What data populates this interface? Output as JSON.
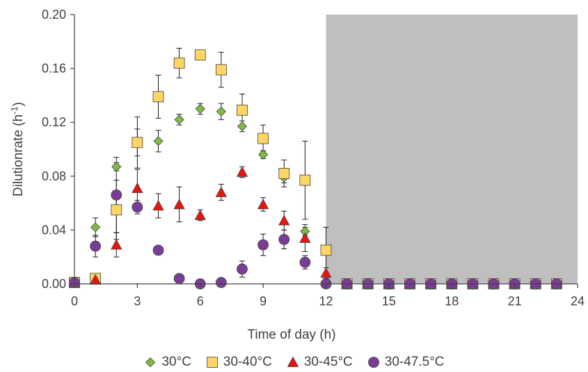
{
  "chart_data": {
    "type": "scatter",
    "xlabel": "Time of day (h)",
    "ylabel_main": "Dilutionrate (h",
    "ylabel_sup": "-1",
    "ylabel_end": ")",
    "xlim": [
      0,
      24
    ],
    "ylim": [
      0,
      0.2
    ],
    "xticks": [
      "0",
      "3",
      "6",
      "9",
      "12",
      "15",
      "18",
      "21",
      "24"
    ],
    "yticks": [
      "0.00",
      "0.04",
      "0.08",
      "0.12",
      "0.16",
      "0.20"
    ],
    "dark_period": [
      12,
      24
    ],
    "grid": false,
    "legend_position": "bottom",
    "series": [
      {
        "name": "30°C",
        "marker": "diamond",
        "color": "#7dbb42",
        "x": [
          0,
          1,
          2,
          3,
          4,
          5,
          6,
          7,
          8,
          9,
          10,
          11,
          12,
          13,
          14,
          15,
          16,
          17,
          18,
          19,
          20,
          21,
          22,
          23
        ],
        "y": [
          0.001,
          0.042,
          0.087,
          0.105,
          0.106,
          0.122,
          0.13,
          0.128,
          0.117,
          0.096,
          0.079,
          0.039,
          0,
          0,
          0,
          0,
          0,
          0,
          0,
          0,
          0,
          0,
          0,
          0
        ],
        "err": [
          0.001,
          0.007,
          0.003,
          0.01,
          0.008,
          0.004,
          0.004,
          0.006,
          0.004,
          0.003,
          0.004,
          0.003,
          0,
          0,
          0,
          0,
          0,
          0,
          0,
          0,
          0,
          0,
          0,
          0
        ]
      },
      {
        "name": "30-40°C",
        "marker": "square",
        "color": "#fdd466",
        "x": [
          0,
          1,
          2,
          3,
          4,
          5,
          6,
          7,
          8,
          9,
          10,
          11,
          12,
          13,
          14,
          15,
          16,
          17,
          18,
          19,
          20,
          21,
          22,
          23
        ],
        "y": [
          0.001,
          0.004,
          0.055,
          0.105,
          0.139,
          0.164,
          0.17,
          0.159,
          0.129,
          0.108,
          0.082,
          0.077,
          0.025,
          0,
          0,
          0,
          0,
          0,
          0,
          0,
          0,
          0,
          0,
          0
        ],
        "err": [
          0.001,
          0.002,
          0.022,
          0.019,
          0.016,
          0.011,
          0.002,
          0.013,
          0.012,
          0.01,
          0.01,
          0.029,
          0.017,
          0,
          0,
          0,
          0,
          0,
          0,
          0,
          0,
          0,
          0,
          0
        ]
      },
      {
        "name": "30-45°C",
        "marker": "triangle",
        "color": "#e8150f",
        "x": [
          0,
          1,
          2,
          3,
          4,
          5,
          6,
          7,
          8,
          9,
          10,
          11,
          12,
          13,
          14,
          15,
          16,
          17,
          18,
          19,
          20,
          21,
          22,
          23
        ],
        "y": [
          0.001,
          0.003,
          0.029,
          0.071,
          0.058,
          0.059,
          0.051,
          0.068,
          0.083,
          0.059,
          0.047,
          0.034,
          0.008,
          0,
          0,
          0,
          0,
          0,
          0,
          0,
          0,
          0,
          0,
          0
        ],
        "err": [
          0.001,
          0.002,
          0.009,
          0.014,
          0.009,
          0.013,
          0.004,
          0.006,
          0.004,
          0.005,
          0.007,
          0.01,
          0.004,
          0,
          0,
          0,
          0,
          0,
          0,
          0,
          0,
          0,
          0,
          0
        ]
      },
      {
        "name": "30-47.5°C",
        "marker": "circle",
        "color": "#7a3d96",
        "x": [
          0,
          1,
          2,
          3,
          4,
          5,
          6,
          7,
          8,
          9,
          10,
          11,
          12,
          13,
          14,
          15,
          16,
          17,
          18,
          19,
          20,
          21,
          22,
          23
        ],
        "y": [
          0.001,
          0.028,
          0.066,
          0.057,
          0.025,
          0.004,
          0,
          0.001,
          0.011,
          0.029,
          0.033,
          0.016,
          0,
          0,
          0,
          0,
          0,
          0,
          0,
          0,
          0,
          0,
          0,
          0
        ],
        "err": [
          0.001,
          0.008,
          0.028,
          0.005,
          0,
          0.001,
          0,
          0.001,
          0.006,
          0.008,
          0.007,
          0.005,
          0,
          0,
          0,
          0,
          0,
          0,
          0,
          0,
          0,
          0,
          0,
          0
        ]
      }
    ]
  }
}
